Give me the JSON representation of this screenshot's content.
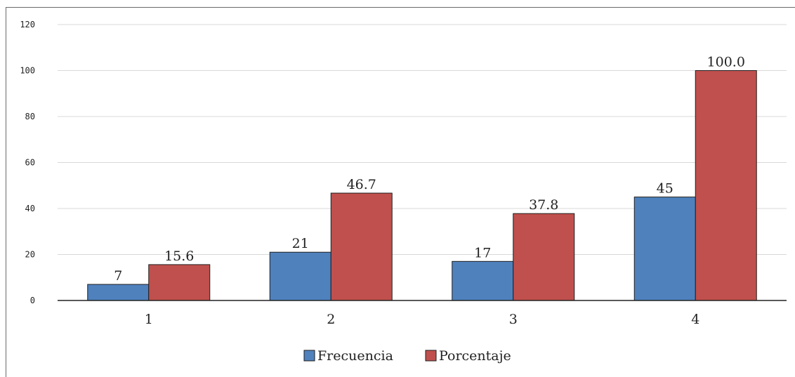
{
  "chart_data": {
    "type": "bar",
    "categories": [
      "1",
      "2",
      "3",
      "4"
    ],
    "series": [
      {
        "name": "Frecuencia",
        "values": [
          7,
          21,
          17,
          45
        ],
        "labels": [
          "7",
          "21",
          "17",
          "45"
        ],
        "color": "#4f81bd"
      },
      {
        "name": "Porcentaje",
        "values": [
          15.6,
          46.7,
          37.8,
          100.0
        ],
        "labels": [
          "15.6",
          "46.7",
          "37.8",
          "100.0"
        ],
        "color": "#c0504d"
      }
    ],
    "ylim": [
      0,
      120
    ],
    "yticks": [
      "0",
      "20",
      "40",
      "60",
      "80",
      "100",
      "120"
    ],
    "grid": true,
    "legend_position": "bottom",
    "title": "",
    "xlabel": "",
    "ylabel": ""
  }
}
